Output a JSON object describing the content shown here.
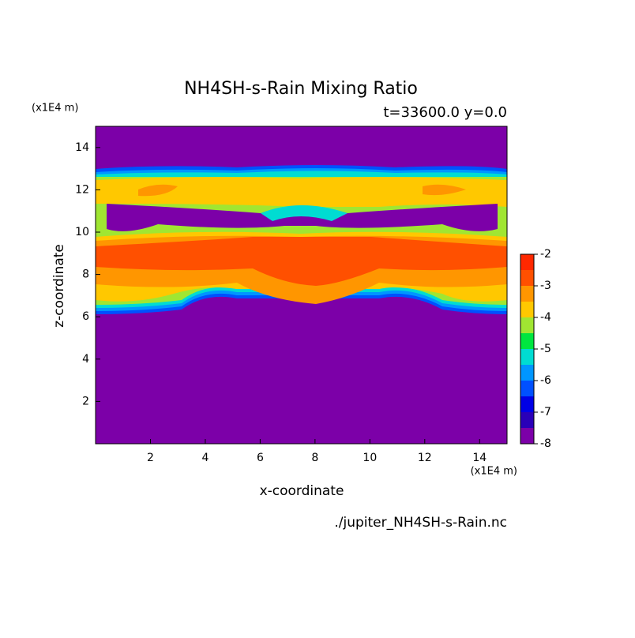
{
  "chart_data": {
    "type": "contour",
    "title": "NH4SH-s-Rain Mixing Ratio",
    "subtitle": "t=33600.0 y=0.0",
    "x_label": "x-coordinate",
    "y_label": "z-coordinate",
    "x_unit": "(x1E4 m)",
    "y_unit": "(x1E4 m)",
    "source": "./jupiter_NH4SH-s-Rain.nc",
    "xlim": [
      0,
      15
    ],
    "ylim": [
      0,
      15
    ],
    "xticks": [
      2,
      4,
      6,
      8,
      10,
      12,
      14
    ],
    "yticks": [
      2,
      4,
      6,
      8,
      10,
      12,
      14
    ],
    "colorbar": {
      "levels": [
        -8,
        -7.5,
        -7,
        -6.5,
        -6,
        -5.5,
        -5,
        -4.5,
        -4,
        -3.5,
        -3,
        -2.5,
        -2
      ],
      "colors": [
        "#7c00a8",
        "#2a00b8",
        "#0000e6",
        "#0050ff",
        "#0096ff",
        "#00dcd2",
        "#00e640",
        "#a0e632",
        "#ffc800",
        "#ff9600",
        "#ff5000",
        "#ff2800",
        "#ffaaaa"
      ],
      "ticks": [
        -8,
        -7,
        -6,
        -5,
        -4,
        -3,
        -2
      ]
    }
  }
}
